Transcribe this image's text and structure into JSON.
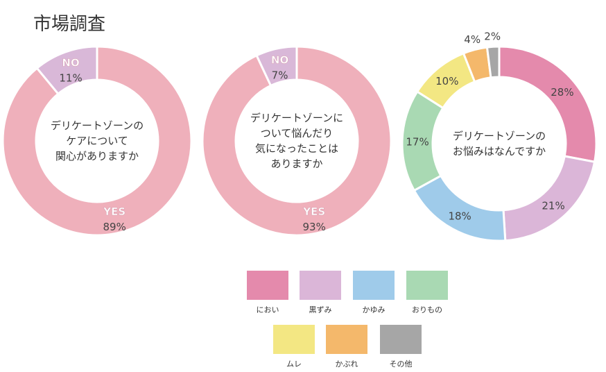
{
  "title": "市場調査",
  "chart_data": [
    {
      "type": "pie",
      "center_text": [
        "デリケートゾーンの",
        "ケアについて",
        "関心がありますか"
      ],
      "slices": [
        {
          "label": "YES",
          "value": 89,
          "value_text": "89%",
          "color": "#efb0bb"
        },
        {
          "label": "NO",
          "value": 11,
          "value_text": "11%",
          "color": "#d9b8d8"
        }
      ]
    },
    {
      "type": "pie",
      "center_text": [
        "デリケートゾーンに",
        "ついて悩んだり",
        "気になったことは",
        "ありますか"
      ],
      "slices": [
        {
          "label": "YES",
          "value": 93,
          "value_text": "93%",
          "color": "#efb0bb"
        },
        {
          "label": "NO",
          "value": 7,
          "value_text": "7%",
          "color": "#d9b8d8"
        }
      ]
    },
    {
      "type": "pie",
      "center_text": [
        "デリケートゾーンの",
        "お悩みはなんですか"
      ],
      "slices": [
        {
          "label": "におい",
          "value": 28,
          "value_text": "28%",
          "color": "#e48aac"
        },
        {
          "label": "黒ずみ",
          "value": 21,
          "value_text": "21%",
          "color": "#dbb6d8"
        },
        {
          "label": "かゆみ",
          "value": 18,
          "value_text": "18%",
          "color": "#9fcbea"
        },
        {
          "label": "おりもの",
          "value": 17,
          "value_text": "17%",
          "color": "#a9d9b3"
        },
        {
          "label": "ムレ",
          "value": 10,
          "value_text": "10%",
          "color": "#f3e783"
        },
        {
          "label": "かぶれ",
          "value": 4,
          "value_text": "4%",
          "color": "#f4b86b"
        },
        {
          "label": "その他",
          "value": 2,
          "value_text": "2%",
          "color": "#a6a6a6"
        }
      ]
    }
  ],
  "legend": [
    {
      "label": "におい",
      "color": "#e48aac"
    },
    {
      "label": "黒ずみ",
      "color": "#dbb6d8"
    },
    {
      "label": "かゆみ",
      "color": "#9fcbea"
    },
    {
      "label": "おりもの",
      "color": "#a9d9b3"
    },
    {
      "label": "ムレ",
      "color": "#f3e783"
    },
    {
      "label": "かぶれ",
      "color": "#f4b86b"
    },
    {
      "label": "その他",
      "color": "#a6a6a6"
    }
  ]
}
